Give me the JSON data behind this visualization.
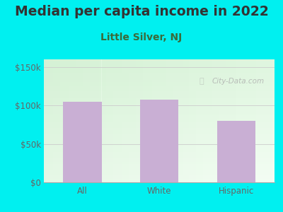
{
  "title": "Median per capita income in 2022",
  "subtitle": "Little Silver, NJ",
  "categories": [
    "All",
    "White",
    "Hispanic"
  ],
  "values": [
    105000,
    108000,
    80000
  ],
  "bar_color": "#c9afd4",
  "background_outer": "#00f0f0",
  "title_color": "#333333",
  "subtitle_color": "#3a6b3a",
  "tick_label_color": "#666666",
  "ylim": [
    0,
    160000
  ],
  "yticks": [
    0,
    50000,
    100000,
    150000
  ],
  "ytick_labels": [
    "$0",
    "$50k",
    "$100k",
    "$150k"
  ],
  "watermark": "City-Data.com",
  "title_fontsize": 13.5,
  "subtitle_fontsize": 10,
  "tick_fontsize": 8.5
}
